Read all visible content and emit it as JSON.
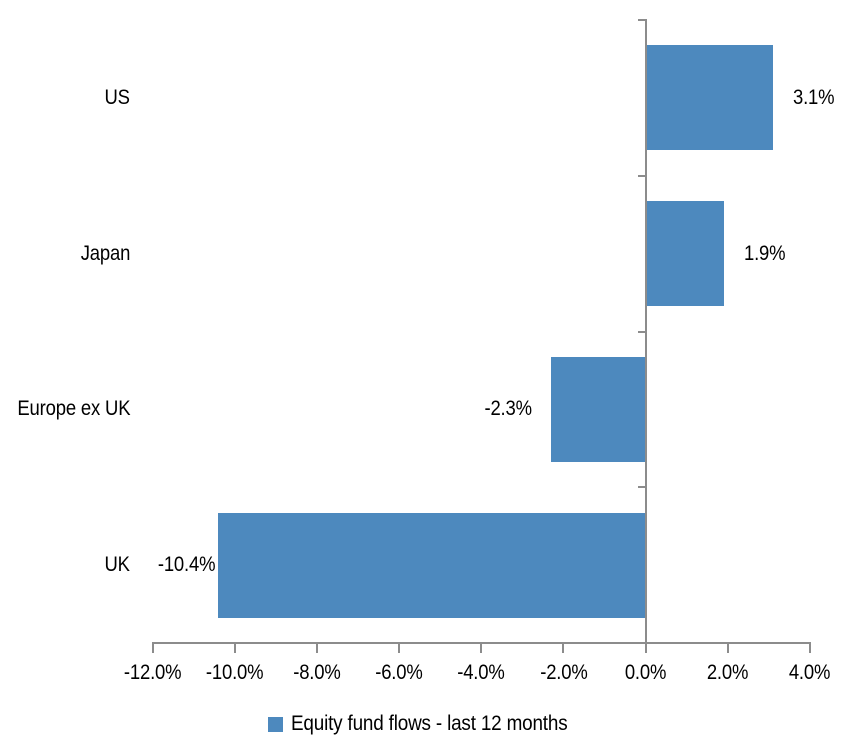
{
  "chart_data": {
    "type": "bar",
    "orientation": "horizontal",
    "title": "",
    "categories": [
      "US",
      "Japan",
      "Europe ex UK",
      "UK"
    ],
    "values": [
      3.1,
      1.9,
      -2.3,
      -10.4
    ],
    "value_labels": [
      "3.1%",
      "1.9%",
      "-2.3%",
      "-10.4%"
    ],
    "series": [
      {
        "name": "Equity fund flows - last 12 months",
        "values": [
          3.1,
          1.9,
          -2.3,
          -10.4
        ]
      }
    ],
    "xlim": [
      -12,
      4
    ],
    "x_ticks": [
      {
        "value": -12,
        "label": "-12.0%"
      },
      {
        "value": -10,
        "label": "-10.0%"
      },
      {
        "value": -8,
        "label": "-8.0%"
      },
      {
        "value": -6,
        "label": "-6.0%"
      },
      {
        "value": -4,
        "label": "-4.0%"
      },
      {
        "value": -2,
        "label": "-2.0%"
      },
      {
        "value": 0,
        "label": "0.0%"
      },
      {
        "value": 2,
        "label": "2.0%"
      },
      {
        "value": 4,
        "label": "4.0%"
      }
    ],
    "grid": false,
    "legend": {
      "position": "bottom",
      "label": "Equity fund flows - last 12 months"
    },
    "colors": {
      "bar": "#4D89BE",
      "axis": "#8C8C8C",
      "text": "#000000",
      "background": "#FFFFFF"
    }
  }
}
